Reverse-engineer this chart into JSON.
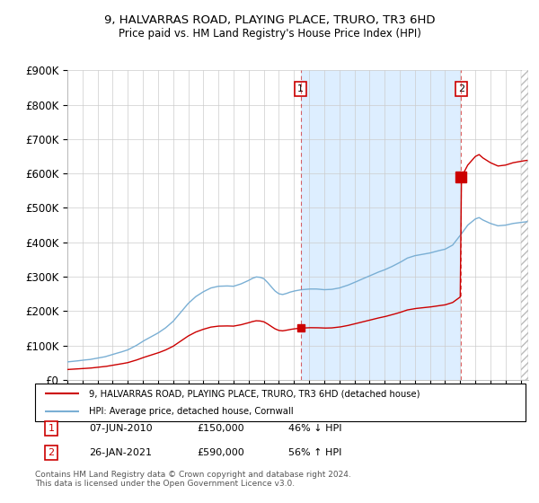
{
  "title": "9, HALVARRAS ROAD, PLAYING PLACE, TRURO, TR3 6HD",
  "subtitle": "Price paid vs. HM Land Registry's House Price Index (HPI)",
  "legend_line1": "9, HALVARRAS ROAD, PLAYING PLACE, TRURO, TR3 6HD (detached house)",
  "legend_line2": "HPI: Average price, detached house, Cornwall",
  "annotation1_label": "1",
  "annotation1_date": "07-JUN-2010",
  "annotation1_price": "£150,000",
  "annotation1_hpi": "46% ↓ HPI",
  "annotation1_year": 2010.44,
  "annotation1_value": 150000,
  "annotation2_label": "2",
  "annotation2_date": "26-JAN-2021",
  "annotation2_price": "£590,000",
  "annotation2_hpi": "56% ↑ HPI",
  "annotation2_year": 2021.07,
  "annotation2_value": 590000,
  "footer1": "Contains HM Land Registry data © Crown copyright and database right 2024.",
  "footer2": "This data is licensed under the Open Government Licence v3.0.",
  "red_color": "#cc0000",
  "blue_color": "#7aafd4",
  "shade_color": "#ddeeff",
  "ylim": [
    0,
    900000
  ],
  "xlim_start": 1995.0,
  "xlim_end": 2025.5
}
